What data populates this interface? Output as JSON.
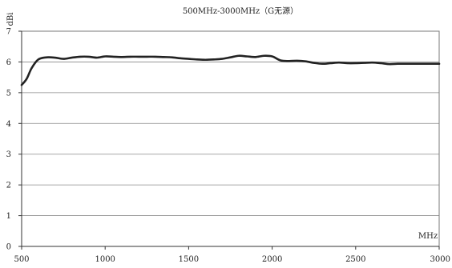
{
  "chart_data": {
    "type": "line",
    "title": "500MHz-3000MHz（G无源）",
    "ylabel": "dBi",
    "xlabel": "MHz",
    "xlim": [
      500,
      3000
    ],
    "ylim": [
      0,
      7
    ],
    "xticks": [
      500,
      1000,
      1500,
      2000,
      2500,
      3000
    ],
    "yticks": [
      0,
      1,
      2,
      3,
      4,
      5,
      6,
      7
    ],
    "grid": {
      "horizontal": true,
      "vertical": false
    },
    "series": [
      {
        "color": "#222222",
        "x": [
          500,
          530,
          560,
          600,
          650,
          700,
          750,
          800,
          850,
          900,
          950,
          1000,
          1050,
          1100,
          1150,
          1200,
          1250,
          1300,
          1350,
          1400,
          1450,
          1500,
          1550,
          1600,
          1650,
          1700,
          1750,
          1800,
          1850,
          1900,
          1950,
          2000,
          2050,
          2100,
          2150,
          2200,
          2250,
          2300,
          2350,
          2400,
          2450,
          2500,
          2550,
          2600,
          2650,
          2700,
          2750,
          2800,
          2850,
          2900,
          2950,
          3000
        ],
        "y": [
          5.25,
          5.45,
          5.8,
          6.08,
          6.15,
          6.14,
          6.1,
          6.14,
          6.17,
          6.17,
          6.14,
          6.18,
          6.17,
          6.16,
          6.17,
          6.17,
          6.17,
          6.17,
          6.16,
          6.15,
          6.12,
          6.1,
          6.08,
          6.07,
          6.08,
          6.1,
          6.15,
          6.2,
          6.18,
          6.16,
          6.2,
          6.18,
          6.05,
          6.03,
          6.04,
          6.02,
          5.97,
          5.94,
          5.96,
          5.98,
          5.96,
          5.96,
          5.97,
          5.98,
          5.96,
          5.93,
          5.94,
          5.94,
          5.94,
          5.94,
          5.94,
          5.94
        ]
      }
    ]
  }
}
